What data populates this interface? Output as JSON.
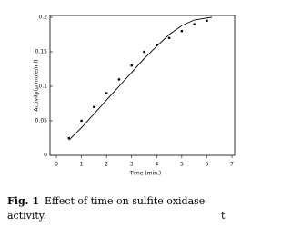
{
  "chart_data": {
    "type": "scatter",
    "x_label": "Time (min.)",
    "y_label": "Activity(µ mole/ml)",
    "x": [
      0.5,
      1,
      1.5,
      2,
      2.5,
      3,
      3.5,
      4,
      4.5,
      5,
      5.5,
      6
    ],
    "values": [
      0.025,
      0.05,
      0.07,
      0.09,
      0.11,
      0.13,
      0.15,
      0.16,
      0.17,
      0.18,
      0.19,
      0.195
    ],
    "fit": {
      "x": [
        0.5,
        1,
        1.5,
        2,
        2.5,
        3,
        3.5,
        4,
        4.5,
        5,
        5.5,
        6,
        6.2
      ],
      "values": [
        0.022,
        0.04,
        0.06,
        0.08,
        0.1,
        0.12,
        0.14,
        0.158,
        0.175,
        0.188,
        0.196,
        0.199,
        0.2
      ]
    },
    "color": "#000000",
    "xlim": [
      0,
      7
    ],
    "xticks": [
      0,
      1,
      2,
      3,
      4,
      5,
      6,
      7
    ],
    "ylim": [
      0,
      0.2
    ],
    "yticks": [
      0,
      0.05,
      0.1,
      0.15,
      0.2
    ]
  },
  "caption": {
    "label": "Fig. 1",
    "line1": "Effect of time on sulfite oxidase",
    "line2": "activity.",
    "margin_text": "t"
  }
}
